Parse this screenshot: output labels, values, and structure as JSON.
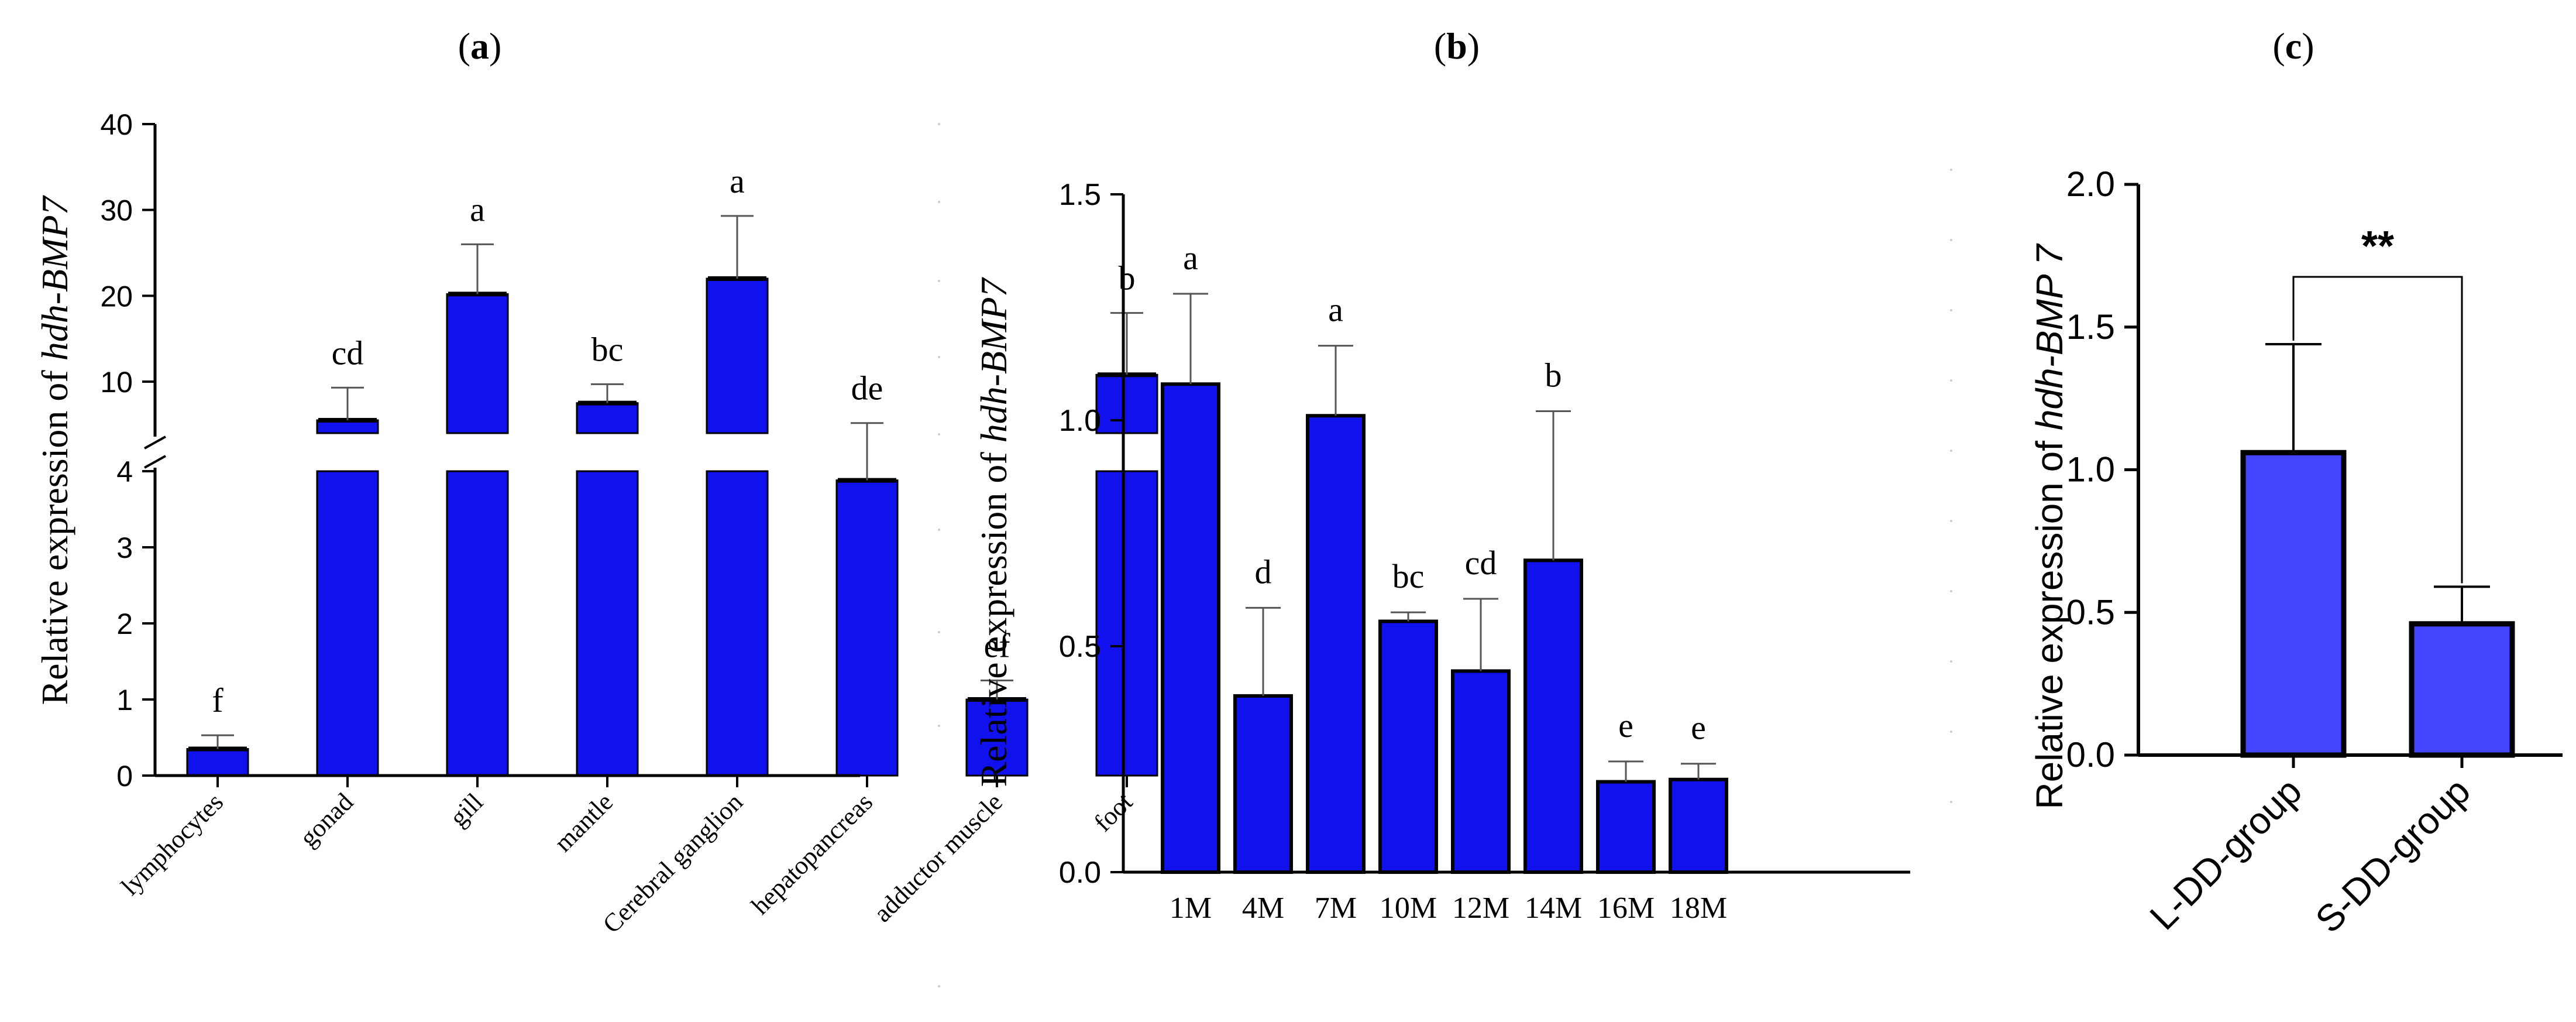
{
  "colors": {
    "bar_primary": "#1111ee",
    "bar_secondary": "#4444ff",
    "axis": "#000000"
  },
  "chart_data": [
    {
      "id": "a",
      "panel_label": "a",
      "type": "bar",
      "ylabel_prefix": "Relative expression of ",
      "ylabel_gene": "hdh-BMP7",
      "categories": [
        "lymphocytes",
        "gonad",
        "gill",
        "mantle",
        "Cerebral ganglion",
        "hepatopancreas",
        "adductor muscle",
        "foot"
      ],
      "values": [
        0.35,
        5.5,
        20.2,
        7.5,
        22.0,
        3.88,
        1.0,
        10.8
      ],
      "errors": [
        0.18,
        3.8,
        5.8,
        2.2,
        7.3,
        1.3,
        0.25,
        7.2
      ],
      "sig_labels": [
        "f",
        "cd",
        "a",
        "bc",
        "a",
        "de",
        "ef",
        "b"
      ],
      "axis_break": {
        "lower": [
          0,
          4
        ],
        "upper": [
          4,
          40
        ]
      },
      "lower_ticks": [
        "0",
        "1",
        "2",
        "3",
        "4"
      ],
      "upper_ticks": [
        "10",
        "20",
        "30",
        "40"
      ]
    },
    {
      "id": "b",
      "panel_label": "b",
      "type": "bar",
      "ylabel_prefix": "Relative expression of ",
      "ylabel_gene": "hdh-BMP7",
      "categories": [
        "1M",
        "4M",
        "7M",
        "10M",
        "12M",
        "14M",
        "16M",
        "18M"
      ],
      "values": [
        1.08,
        0.39,
        1.01,
        0.555,
        0.445,
        0.69,
        0.2,
        0.205
      ],
      "errors": [
        0.2,
        0.195,
        0.155,
        0.02,
        0.16,
        0.33,
        0.045,
        0.035
      ],
      "sig_labels": [
        "a",
        "d",
        "a",
        "bc",
        "cd",
        "b",
        "e",
        "e"
      ],
      "ylim": [
        0,
        1.5
      ],
      "y_ticks": [
        "0.0",
        "0.5",
        "1.0",
        "1.5"
      ]
    },
    {
      "id": "c",
      "panel_label": "c",
      "type": "bar",
      "ylabel_prefix": "Relative expression of ",
      "ylabel_gene": "hdh-BMP 7",
      "categories": [
        "L-DD-group",
        "S-DD-group"
      ],
      "values": [
        1.06,
        0.46
      ],
      "errors": [
        0.38,
        0.13
      ],
      "significance": "**",
      "ylim": [
        0,
        2.0
      ],
      "y_ticks": [
        "0.0",
        "0.5",
        "1.0",
        "1.5",
        "2.0"
      ]
    }
  ]
}
